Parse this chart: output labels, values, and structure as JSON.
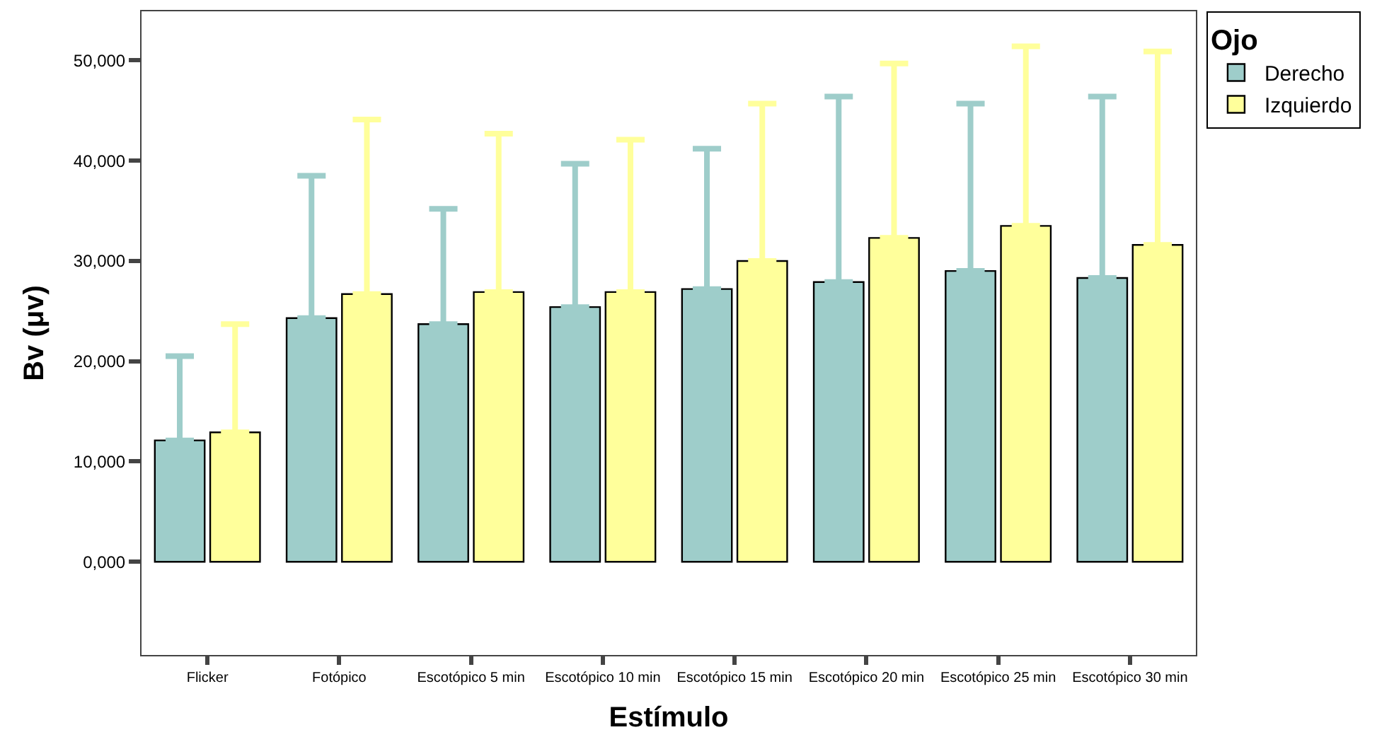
{
  "chart_data": {
    "type": "bar",
    "xlabel": "Estímulo",
    "ylabel": "Bv (μv)",
    "legend_title": "Ojo",
    "legend": "top right",
    "categories": [
      "Flicker",
      "Fotópico",
      "Escotópico 5 min",
      "Escotópico 10 min",
      "Escotópico 15 min",
      "Escotópico 20 min",
      "Escotópico 25 min",
      "Escotópico 30 min"
    ],
    "ylim": [
      -9300,
      54900
    ],
    "yticks": [
      {
        "value": 0,
        "label": "0,000"
      },
      {
        "value": 10000,
        "label": "10,000"
      },
      {
        "value": 20000,
        "label": "20,000"
      },
      {
        "value": 30000,
        "label": "30,000"
      },
      {
        "value": 40000,
        "label": "40,000"
      },
      {
        "value": 50000,
        "label": "50,000"
      }
    ],
    "series": [
      {
        "name": "Derecho",
        "color": "#9ecdca",
        "values": [
          12100,
          24300,
          23700,
          25400,
          27200,
          27900,
          29000,
          28300
        ],
        "errors": [
          [
            12100,
            20500
          ],
          [
            24300,
            38500
          ],
          [
            23700,
            35200
          ],
          [
            25400,
            39700
          ],
          [
            27200,
            41200
          ],
          [
            27900,
            46400
          ],
          [
            29000,
            45700
          ],
          [
            28300,
            46400
          ]
        ]
      },
      {
        "name": "Izquierdo",
        "color": "#ffff9b",
        "values": [
          12900,
          26700,
          26900,
          26900,
          30000,
          32300,
          33500,
          31600
        ],
        "errors": [
          [
            12900,
            23700
          ],
          [
            26700,
            44100
          ],
          [
            26900,
            42700
          ],
          [
            26900,
            42100
          ],
          [
            30000,
            45700
          ],
          [
            32300,
            49700
          ],
          [
            33500,
            51400
          ],
          [
            31600,
            50900
          ]
        ]
      }
    ]
  }
}
